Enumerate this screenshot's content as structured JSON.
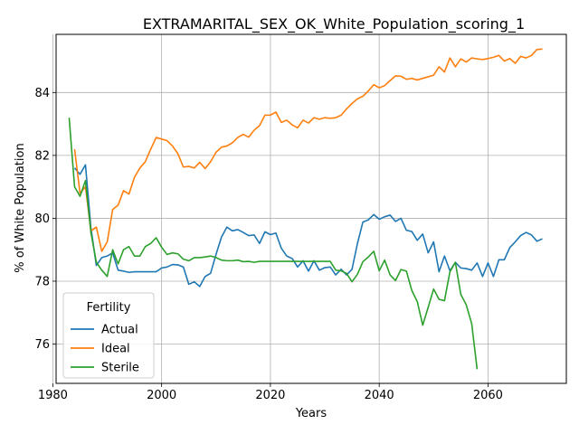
{
  "chart_data": {
    "type": "line",
    "title": "EXTRAMARITAL_SEX_OK_White_Population_scoring_1",
    "xlabel": "Years",
    "ylabel": "% of White Population",
    "xlim": [
      1980.6,
      2074.4
    ],
    "ylim": [
      74.75,
      85.85
    ],
    "xticks": [
      1980,
      2000,
      2020,
      2040,
      2060
    ],
    "yticks": [
      76,
      78,
      80,
      82,
      84
    ],
    "grid": true,
    "legend": {
      "title": "Fertility",
      "placement": "lower-left"
    },
    "series": [
      {
        "name": "Actual",
        "color": "#1f77b4",
        "points": [
          [
            1984,
            81.6
          ],
          [
            1985,
            81.4
          ],
          [
            1986,
            81.7
          ],
          [
            1987,
            79.7
          ],
          [
            1988,
            78.5
          ],
          [
            1989,
            78.75
          ],
          [
            1990,
            78.8
          ],
          [
            1991,
            78.9
          ],
          [
            1992,
            78.35
          ],
          [
            1993,
            78.32
          ],
          [
            1994,
            78.28
          ],
          [
            1995,
            78.3
          ],
          [
            1996,
            78.3
          ],
          [
            1997,
            78.3
          ],
          [
            1998,
            78.3
          ],
          [
            1999,
            78.3
          ],
          [
            2000,
            78.42
          ],
          [
            2001,
            78.45
          ],
          [
            2002,
            78.53
          ],
          [
            2003,
            78.52
          ],
          [
            2004,
            78.45
          ],
          [
            2005,
            77.9
          ],
          [
            2006,
            77.98
          ],
          [
            2007,
            77.83
          ],
          [
            2008,
            78.15
          ],
          [
            2009,
            78.25
          ],
          [
            2010,
            78.85
          ],
          [
            2011,
            79.4
          ],
          [
            2012,
            79.72
          ],
          [
            2013,
            79.6
          ],
          [
            2014,
            79.64
          ],
          [
            2015,
            79.55
          ],
          [
            2016,
            79.45
          ],
          [
            2017,
            79.47
          ],
          [
            2018,
            79.2
          ],
          [
            2019,
            79.57
          ],
          [
            2020,
            79.48
          ],
          [
            2021,
            79.53
          ],
          [
            2022,
            79.05
          ],
          [
            2023,
            78.8
          ],
          [
            2024,
            78.72
          ],
          [
            2025,
            78.45
          ],
          [
            2026,
            78.65
          ],
          [
            2027,
            78.32
          ],
          [
            2028,
            78.65
          ],
          [
            2029,
            78.35
          ],
          [
            2030,
            78.43
          ],
          [
            2031,
            78.45
          ],
          [
            2032,
            78.2
          ],
          [
            2033,
            78.38
          ],
          [
            2034,
            78.2
          ],
          [
            2035,
            78.38
          ],
          [
            2036,
            79.2
          ],
          [
            2037,
            79.88
          ],
          [
            2038,
            79.95
          ],
          [
            2039,
            80.12
          ],
          [
            2040,
            79.97
          ],
          [
            2041,
            80.05
          ],
          [
            2042,
            80.1
          ],
          [
            2043,
            79.9
          ],
          [
            2044,
            80.0
          ],
          [
            2045,
            79.62
          ],
          [
            2046,
            79.58
          ],
          [
            2047,
            79.3
          ],
          [
            2048,
            79.5
          ],
          [
            2049,
            78.9
          ],
          [
            2050,
            79.25
          ],
          [
            2051,
            78.3
          ],
          [
            2052,
            78.8
          ],
          [
            2053,
            78.33
          ],
          [
            2054,
            78.6
          ],
          [
            2055,
            78.42
          ],
          [
            2056,
            78.4
          ],
          [
            2057,
            78.35
          ],
          [
            2058,
            78.58
          ],
          [
            2059,
            78.15
          ],
          [
            2060,
            78.58
          ],
          [
            2061,
            78.15
          ],
          [
            2062,
            78.68
          ],
          [
            2063,
            78.68
          ],
          [
            2064,
            79.07
          ],
          [
            2065,
            79.25
          ],
          [
            2066,
            79.45
          ],
          [
            2067,
            79.55
          ],
          [
            2068,
            79.47
          ],
          [
            2069,
            79.27
          ],
          [
            2070,
            79.35
          ]
        ]
      },
      {
        "name": "Ideal",
        "color": "#ff7f0e",
        "points": [
          [
            1984,
            82.2
          ],
          [
            1985,
            80.8
          ],
          [
            1986,
            81.0
          ],
          [
            1987,
            79.6
          ],
          [
            1988,
            79.72
          ],
          [
            1989,
            78.95
          ],
          [
            1990,
            79.25
          ],
          [
            1991,
            80.28
          ],
          [
            1992,
            80.42
          ],
          [
            1993,
            80.88
          ],
          [
            1994,
            80.77
          ],
          [
            1995,
            81.3
          ],
          [
            1996,
            81.6
          ],
          [
            1997,
            81.8
          ],
          [
            1998,
            82.2
          ],
          [
            1999,
            82.57
          ],
          [
            2000,
            82.52
          ],
          [
            2001,
            82.47
          ],
          [
            2002,
            82.3
          ],
          [
            2003,
            82.05
          ],
          [
            2004,
            81.63
          ],
          [
            2005,
            81.65
          ],
          [
            2006,
            81.6
          ],
          [
            2007,
            81.78
          ],
          [
            2008,
            81.58
          ],
          [
            2009,
            81.8
          ],
          [
            2010,
            82.1
          ],
          [
            2011,
            82.26
          ],
          [
            2012,
            82.3
          ],
          [
            2013,
            82.4
          ],
          [
            2014,
            82.57
          ],
          [
            2015,
            82.67
          ],
          [
            2016,
            82.58
          ],
          [
            2017,
            82.8
          ],
          [
            2018,
            82.95
          ],
          [
            2019,
            83.28
          ],
          [
            2020,
            83.28
          ],
          [
            2021,
            83.38
          ],
          [
            2022,
            83.05
          ],
          [
            2023,
            83.12
          ],
          [
            2024,
            82.97
          ],
          [
            2025,
            82.88
          ],
          [
            2026,
            83.12
          ],
          [
            2027,
            83.03
          ],
          [
            2028,
            83.2
          ],
          [
            2029,
            83.15
          ],
          [
            2030,
            83.2
          ],
          [
            2031,
            83.18
          ],
          [
            2032,
            83.2
          ],
          [
            2033,
            83.28
          ],
          [
            2034,
            83.48
          ],
          [
            2035,
            83.65
          ],
          [
            2036,
            83.8
          ],
          [
            2037,
            83.88
          ],
          [
            2038,
            84.05
          ],
          [
            2039,
            84.25
          ],
          [
            2040,
            84.15
          ],
          [
            2041,
            84.22
          ],
          [
            2042,
            84.38
          ],
          [
            2043,
            84.53
          ],
          [
            2044,
            84.52
          ],
          [
            2045,
            84.42
          ],
          [
            2046,
            84.45
          ],
          [
            2047,
            84.4
          ],
          [
            2048,
            84.45
          ],
          [
            2049,
            84.5
          ],
          [
            2050,
            84.55
          ],
          [
            2051,
            84.82
          ],
          [
            2052,
            84.65
          ],
          [
            2053,
            85.1
          ],
          [
            2054,
            84.82
          ],
          [
            2055,
            85.07
          ],
          [
            2056,
            84.97
          ],
          [
            2057,
            85.1
          ],
          [
            2058,
            85.07
          ],
          [
            2059,
            85.05
          ],
          [
            2060,
            85.08
          ],
          [
            2061,
            85.12
          ],
          [
            2062,
            85.18
          ],
          [
            2063,
            85.0
          ],
          [
            2064,
            85.08
          ],
          [
            2065,
            84.93
          ],
          [
            2066,
            85.15
          ],
          [
            2067,
            85.1
          ],
          [
            2068,
            85.18
          ],
          [
            2069,
            85.37
          ],
          [
            2070,
            85.38
          ]
        ]
      },
      {
        "name": "Sterile",
        "color": "#2ca02c",
        "points": [
          [
            1983,
            83.2
          ],
          [
            1984,
            81.0
          ],
          [
            1985,
            80.7
          ],
          [
            1986,
            81.2
          ],
          [
            1987,
            79.55
          ],
          [
            1988,
            78.6
          ],
          [
            1989,
            78.35
          ],
          [
            1990,
            78.15
          ],
          [
            1991,
            79.0
          ],
          [
            1992,
            78.55
          ],
          [
            1993,
            79.0
          ],
          [
            1994,
            79.1
          ],
          [
            1995,
            78.8
          ],
          [
            1996,
            78.8
          ],
          [
            1997,
            79.1
          ],
          [
            1998,
            79.2
          ],
          [
            1999,
            79.38
          ],
          [
            2000,
            79.08
          ],
          [
            2001,
            78.85
          ],
          [
            2002,
            78.9
          ],
          [
            2003,
            78.87
          ],
          [
            2004,
            78.7
          ],
          [
            2005,
            78.65
          ],
          [
            2006,
            78.75
          ],
          [
            2007,
            78.75
          ],
          [
            2008,
            78.77
          ],
          [
            2009,
            78.8
          ],
          [
            2010,
            78.75
          ],
          [
            2011,
            78.67
          ],
          [
            2012,
            78.65
          ],
          [
            2013,
            78.65
          ],
          [
            2014,
            78.67
          ],
          [
            2015,
            78.62
          ],
          [
            2016,
            78.63
          ],
          [
            2017,
            78.6
          ],
          [
            2018,
            78.63
          ],
          [
            2019,
            78.63
          ],
          [
            2020,
            78.63
          ],
          [
            2021,
            78.63
          ],
          [
            2022,
            78.63
          ],
          [
            2023,
            78.63
          ],
          [
            2024,
            78.63
          ],
          [
            2025,
            78.63
          ],
          [
            2026,
            78.63
          ],
          [
            2027,
            78.63
          ],
          [
            2028,
            78.63
          ],
          [
            2029,
            78.63
          ],
          [
            2030,
            78.63
          ],
          [
            2031,
            78.63
          ],
          [
            2032,
            78.35
          ],
          [
            2033,
            78.33
          ],
          [
            2034,
            78.25
          ],
          [
            2035,
            77.98
          ],
          [
            2036,
            78.22
          ],
          [
            2037,
            78.62
          ],
          [
            2038,
            78.77
          ],
          [
            2039,
            78.95
          ],
          [
            2040,
            78.33
          ],
          [
            2041,
            78.67
          ],
          [
            2042,
            78.2
          ],
          [
            2043,
            78.02
          ],
          [
            2044,
            78.37
          ],
          [
            2045,
            78.32
          ],
          [
            2046,
            77.7
          ],
          [
            2047,
            77.35
          ],
          [
            2048,
            76.6
          ],
          [
            2049,
            77.17
          ],
          [
            2050,
            77.75
          ],
          [
            2051,
            77.42
          ],
          [
            2052,
            77.38
          ],
          [
            2053,
            78.3
          ],
          [
            2054,
            78.6
          ],
          [
            2055,
            77.58
          ],
          [
            2056,
            77.25
          ],
          [
            2057,
            76.65
          ],
          [
            2058,
            75.2
          ]
        ]
      }
    ]
  }
}
